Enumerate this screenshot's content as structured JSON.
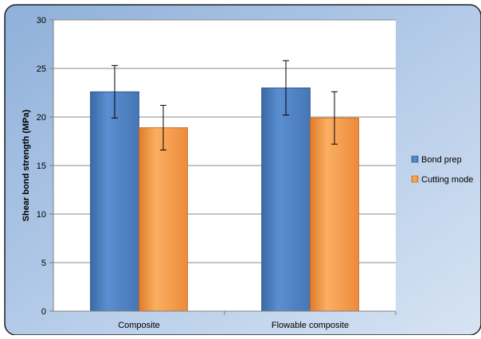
{
  "chart_data": {
    "type": "bar",
    "title": "",
    "xlabel": "",
    "ylabel": "Shear bond strength (MPa)",
    "ylim": [
      0,
      30
    ],
    "yticks": [
      0,
      5,
      10,
      15,
      20,
      25,
      30
    ],
    "categories": [
      "Composite",
      "Flowable composite"
    ],
    "series": [
      {
        "name": "Bond prep",
        "values": [
          22.6,
          23.0
        ],
        "error_low": [
          19.9,
          20.2
        ],
        "error_high": [
          25.3,
          25.8
        ],
        "color": "#4f81bd"
      },
      {
        "name": "Cutting mode",
        "values": [
          18.9,
          19.9
        ],
        "error_low": [
          16.6,
          17.2
        ],
        "error_high": [
          21.2,
          22.6
        ],
        "color": "#f79646"
      }
    ],
    "grid": true,
    "legend": "right"
  }
}
